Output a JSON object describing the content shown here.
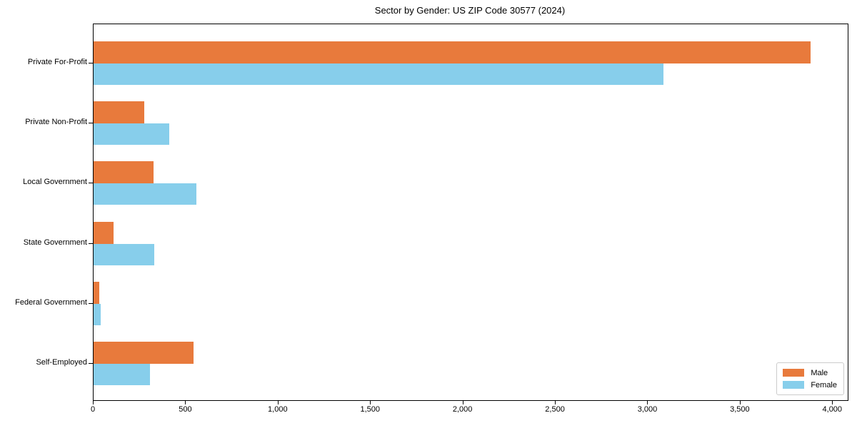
{
  "chart_data": {
    "type": "bar",
    "orientation": "horizontal",
    "title": "Sector by Gender: US ZIP Code 30577 (2024)",
    "categories": [
      "Private For-Profit",
      "Private Non-Profit",
      "Local Government",
      "State Government",
      "Federal Government",
      "Self-Employed"
    ],
    "series": [
      {
        "name": "Male",
        "color": "#E87A3C",
        "values": [
          3880,
          275,
          325,
          110,
          30,
          540
        ]
      },
      {
        "name": "Female",
        "color": "#87CEEB",
        "values": [
          3085,
          410,
          555,
          330,
          40,
          305
        ]
      }
    ],
    "xlabel": "",
    "ylabel": "",
    "xlim": [
      0,
      4080
    ],
    "xticks": [
      0,
      500,
      1000,
      1500,
      2000,
      2500,
      3000,
      3500,
      4000
    ],
    "xtick_labels": [
      "0",
      "500",
      "1,000",
      "1,500",
      "2,000",
      "2,500",
      "3,000",
      "3,500",
      "4,000"
    ],
    "legend_position": "lower right",
    "grid": false,
    "bar_group_order_note": "Male bar on top, Female bar below, per category"
  }
}
